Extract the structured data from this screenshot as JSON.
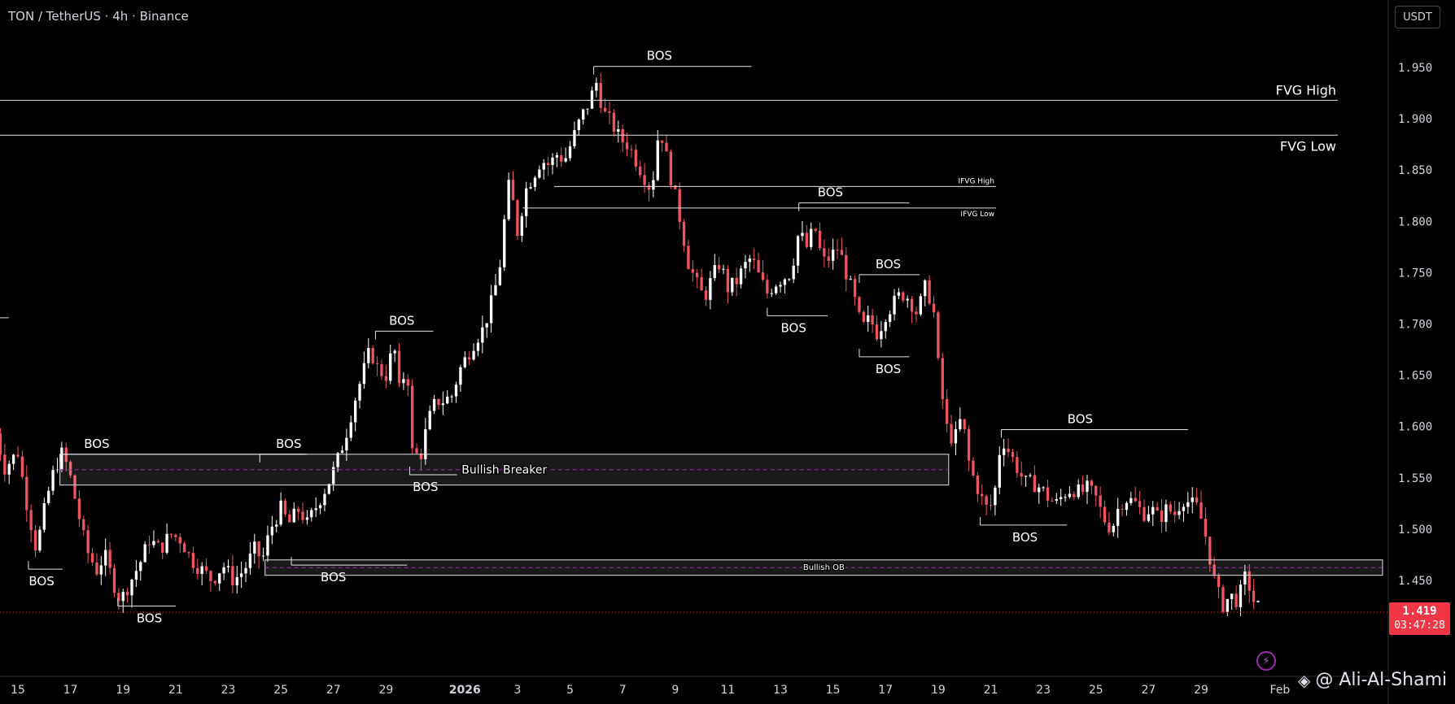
{
  "header": {
    "title": "TON / TetherUS · 4h · Binance",
    "quote_currency": "USDT"
  },
  "last_price": {
    "price": "1.419",
    "countdown": "03:47:28"
  },
  "watermark": {
    "text": "@ Ali-Al-Shami",
    "icon": "binance-logo-icon"
  },
  "colors": {
    "up": "#ffffff",
    "down": "#f0545c",
    "background": "#000000",
    "zone_line": "#9c27b0",
    "price_tag": "#f23645"
  },
  "chart_data": {
    "type": "candlestick",
    "title": "TON / TetherUS · 4h · Binance",
    "ylim": [
      1.385,
      1.99
    ],
    "y_ticks": [
      1.45,
      1.5,
      1.55,
      1.6,
      1.65,
      1.7,
      1.75,
      1.8,
      1.85,
      1.9,
      1.95
    ],
    "y_tick_labels": [
      "1.450",
      "1.500",
      "1.550",
      "1.600",
      "1.650",
      "1.700",
      "1.750",
      "1.800",
      "1.850",
      "1.900",
      "1.950"
    ],
    "x_ticks": [
      {
        "day": 15,
        "label": "15"
      },
      {
        "day": 17,
        "label": "17"
      },
      {
        "day": 19,
        "label": "19"
      },
      {
        "day": 21,
        "label": "21"
      },
      {
        "day": 23,
        "label": "23"
      },
      {
        "day": 25,
        "label": "25"
      },
      {
        "day": 27,
        "label": "27"
      },
      {
        "day": 29,
        "label": "29"
      },
      {
        "day": 32,
        "label": "2026"
      },
      {
        "day": 34,
        "label": "3"
      },
      {
        "day": 36,
        "label": "5"
      },
      {
        "day": 38,
        "label": "7"
      },
      {
        "day": 40,
        "label": "9"
      },
      {
        "day": 42,
        "label": "11"
      },
      {
        "day": 44,
        "label": "13"
      },
      {
        "day": 46,
        "label": "15"
      },
      {
        "day": 48,
        "label": "17"
      },
      {
        "day": 50,
        "label": "19"
      },
      {
        "day": 52,
        "label": "21"
      },
      {
        "day": 54,
        "label": "23"
      },
      {
        "day": 56,
        "label": "25"
      },
      {
        "day": 58,
        "label": "27"
      },
      {
        "day": 60,
        "label": "29"
      },
      {
        "day": 63,
        "label": "Feb"
      }
    ],
    "x_domain": [
      14.5,
      67
    ],
    "close_path": [
      [
        14.0,
        1.61
      ],
      [
        14.5,
        1.56
      ],
      [
        15.0,
        1.575
      ],
      [
        15.3,
        1.53
      ],
      [
        15.7,
        1.48
      ],
      [
        16.1,
        1.53
      ],
      [
        16.4,
        1.56
      ],
      [
        16.7,
        1.575
      ],
      [
        17.0,
        1.55
      ],
      [
        17.3,
        1.515
      ],
      [
        17.6,
        1.48
      ],
      [
        18.0,
        1.46
      ],
      [
        18.3,
        1.475
      ],
      [
        18.6,
        1.45
      ],
      [
        18.9,
        1.43
      ],
      [
        19.3,
        1.45
      ],
      [
        19.7,
        1.47
      ],
      [
        20.0,
        1.49
      ],
      [
        20.4,
        1.48
      ],
      [
        20.8,
        1.495
      ],
      [
        21.2,
        1.49
      ],
      [
        21.6,
        1.47
      ],
      [
        22.0,
        1.46
      ],
      [
        22.4,
        1.45
      ],
      [
        22.8,
        1.465
      ],
      [
        23.2,
        1.45
      ],
      [
        23.6,
        1.46
      ],
      [
        24.0,
        1.48
      ],
      [
        24.3,
        1.47
      ],
      [
        24.6,
        1.5
      ],
      [
        25.0,
        1.52
      ],
      [
        25.3,
        1.505
      ],
      [
        25.7,
        1.52
      ],
      [
        26.0,
        1.505
      ],
      [
        26.3,
        1.52
      ],
      [
        26.6,
        1.535
      ],
      [
        26.9,
        1.55
      ],
      [
        27.2,
        1.57
      ],
      [
        27.5,
        1.595
      ],
      [
        27.8,
        1.625
      ],
      [
        28.1,
        1.65
      ],
      [
        28.4,
        1.675
      ],
      [
        28.7,
        1.655
      ],
      [
        29.0,
        1.65
      ],
      [
        29.3,
        1.68
      ],
      [
        29.5,
        1.635
      ],
      [
        29.8,
        1.66
      ],
      [
        30.0,
        1.575
      ],
      [
        30.3,
        1.57
      ],
      [
        30.6,
        1.605
      ],
      [
        30.9,
        1.625
      ],
      [
        31.2,
        1.625
      ],
      [
        31.5,
        1.63
      ],
      [
        31.8,
        1.655
      ],
      [
        32.1,
        1.67
      ],
      [
        32.4,
        1.685
      ],
      [
        32.7,
        1.695
      ],
      [
        33.0,
        1.72
      ],
      [
        33.3,
        1.75
      ],
      [
        33.5,
        1.8
      ],
      [
        33.7,
        1.84
      ],
      [
        34.0,
        1.79
      ],
      [
        34.3,
        1.83
      ],
      [
        34.6,
        1.845
      ],
      [
        34.9,
        1.86
      ],
      [
        35.2,
        1.855
      ],
      [
        35.5,
        1.865
      ],
      [
        35.8,
        1.86
      ],
      [
        36.1,
        1.88
      ],
      [
        36.4,
        1.9
      ],
      [
        36.7,
        1.915
      ],
      [
        37.0,
        1.935
      ],
      [
        37.3,
        1.905
      ],
      [
        37.6,
        1.895
      ],
      [
        37.9,
        1.88
      ],
      [
        38.2,
        1.875
      ],
      [
        38.5,
        1.86
      ],
      [
        38.8,
        1.845
      ],
      [
        39.1,
        1.83
      ],
      [
        39.4,
        1.895
      ],
      [
        39.6,
        1.87
      ],
      [
        39.9,
        1.835
      ],
      [
        40.2,
        1.8
      ],
      [
        40.5,
        1.76
      ],
      [
        40.8,
        1.74
      ],
      [
        41.1,
        1.725
      ],
      [
        41.4,
        1.745
      ],
      [
        41.7,
        1.76
      ],
      [
        42.0,
        1.735
      ],
      [
        42.3,
        1.74
      ],
      [
        42.6,
        1.755
      ],
      [
        42.9,
        1.765
      ],
      [
        43.2,
        1.745
      ],
      [
        43.5,
        1.73
      ],
      [
        43.8,
        1.74
      ],
      [
        44.1,
        1.745
      ],
      [
        44.4,
        1.75
      ],
      [
        44.7,
        1.79
      ],
      [
        45.0,
        1.775
      ],
      [
        45.3,
        1.795
      ],
      [
        45.6,
        1.76
      ],
      [
        45.9,
        1.765
      ],
      [
        46.2,
        1.775
      ],
      [
        46.5,
        1.75
      ],
      [
        46.8,
        1.725
      ],
      [
        47.1,
        1.695
      ],
      [
        47.4,
        1.705
      ],
      [
        47.7,
        1.69
      ],
      [
        48.0,
        1.71
      ],
      [
        48.3,
        1.72
      ],
      [
        48.6,
        1.73
      ],
      [
        48.9,
        1.725
      ],
      [
        49.2,
        1.71
      ],
      [
        49.5,
        1.735
      ],
      [
        49.8,
        1.72
      ],
      [
        50.0,
        1.66
      ],
      [
        50.3,
        1.6
      ],
      [
        50.6,
        1.585
      ],
      [
        50.9,
        1.61
      ],
      [
        51.2,
        1.56
      ],
      [
        51.5,
        1.54
      ],
      [
        51.8,
        1.52
      ],
      [
        52.1,
        1.525
      ],
      [
        52.4,
        1.59
      ],
      [
        52.7,
        1.575
      ],
      [
        53.0,
        1.56
      ],
      [
        53.3,
        1.545
      ],
      [
        53.6,
        1.545
      ],
      [
        53.9,
        1.54
      ],
      [
        54.2,
        1.53
      ],
      [
        54.5,
        1.525
      ],
      [
        54.8,
        1.535
      ],
      [
        55.1,
        1.54
      ],
      [
        55.4,
        1.535
      ],
      [
        55.7,
        1.54
      ],
      [
        56.0,
        1.53
      ],
      [
        56.3,
        1.51
      ],
      [
        56.6,
        1.5
      ],
      [
        56.9,
        1.525
      ],
      [
        57.2,
        1.53
      ],
      [
        57.5,
        1.525
      ],
      [
        57.8,
        1.515
      ],
      [
        58.1,
        1.52
      ],
      [
        58.4,
        1.51
      ],
      [
        58.7,
        1.52
      ],
      [
        59.0,
        1.515
      ],
      [
        59.3,
        1.53
      ],
      [
        59.6,
        1.525
      ],
      [
        59.9,
        1.52
      ],
      [
        60.2,
        1.49
      ],
      [
        60.5,
        1.45
      ],
      [
        60.8,
        1.425
      ],
      [
        61.1,
        1.435
      ],
      [
        61.4,
        1.43
      ],
      [
        61.7,
        1.455
      ],
      [
        62.0,
        1.43
      ],
      [
        62.3,
        1.42
      ]
    ],
    "horizontal_levels": [
      {
        "label": "FVG High",
        "price": 1.918,
        "x_start": 14.0,
        "x_end": 65.2,
        "label_side": "above"
      },
      {
        "label": "FVG Low",
        "price": 1.884,
        "x_start": 14.0,
        "x_end": 65.2,
        "label_side": "below"
      },
      {
        "label": "IFVG High",
        "price": 1.834,
        "x_start": 35.4,
        "x_end": 52.2,
        "label_side": "above",
        "small": true
      },
      {
        "label": "IFVG Low",
        "price": 1.813,
        "x_start": 34.2,
        "x_end": 52.2,
        "label_side": "below",
        "small": true
      }
    ],
    "zones": [
      {
        "label": "Bullish Breaker",
        "top": 1.573,
        "bottom": 1.543,
        "x_start": 16.6,
        "x_end": 50.4
      },
      {
        "label": "Bullish OB",
        "top": 1.47,
        "bottom": 1.455,
        "x_start": 24.4,
        "x_end": 66.9
      }
    ],
    "bos": [
      {
        "label": "BOS",
        "price": 1.573,
        "x_start": 16.6,
        "x_end": 25.9,
        "label_x": 18.0,
        "label_side": "above"
      },
      {
        "label": "BOS",
        "price": 1.461,
        "x_start": 15.4,
        "x_end": 16.7,
        "label_x": 15.9,
        "label_side": "below"
      },
      {
        "label": "BOS",
        "price": 1.425,
        "x_start": 18.8,
        "x_end": 21.0,
        "label_x": 20.0,
        "label_side": "below"
      },
      {
        "label": "BOS",
        "price": 1.573,
        "x_start": 24.2,
        "x_end": 26.0,
        "label_x": 25.3,
        "label_side": "above"
      },
      {
        "label": "BOS",
        "price": 1.465,
        "x_start": 25.4,
        "x_end": 29.8,
        "label_x": 27.0,
        "label_side": "below"
      },
      {
        "label": "BOS",
        "price": 1.693,
        "x_start": 28.6,
        "x_end": 30.8,
        "label_x": 29.6,
        "label_side": "above"
      },
      {
        "label": "BOS",
        "price": 1.553,
        "x_start": 29.9,
        "x_end": 31.7,
        "label_x": 30.5,
        "label_side": "below"
      },
      {
        "label": "BOS",
        "price": 1.951,
        "x_start": 36.9,
        "x_end": 42.9,
        "label_x": 39.4,
        "label_side": "above"
      },
      {
        "label": "BOS",
        "price": 1.818,
        "x_start": 44.7,
        "x_end": 48.9,
        "label_x": 45.9,
        "label_side": "above"
      },
      {
        "label": "BOS",
        "price": 1.708,
        "x_start": 43.5,
        "x_end": 45.8,
        "label_x": 44.5,
        "label_side": "below"
      },
      {
        "label": "BOS",
        "price": 1.748,
        "x_start": 47.0,
        "x_end": 49.3,
        "label_x": 48.1,
        "label_side": "above"
      },
      {
        "label": "BOS",
        "price": 1.668,
        "x_start": 47.0,
        "x_end": 48.9,
        "label_x": 48.1,
        "label_side": "below"
      },
      {
        "label": "BOS",
        "price": 1.597,
        "x_start": 52.4,
        "x_end": 59.5,
        "label_x": 55.4,
        "label_side": "above"
      },
      {
        "label": "BOS",
        "price": 1.504,
        "x_start": 51.6,
        "x_end": 54.9,
        "label_x": 53.3,
        "label_side": "below"
      }
    ],
    "short_level": {
      "price": 1.706,
      "x_start": 14.0,
      "x_end": 14.65
    },
    "current_price": 1.419
  }
}
